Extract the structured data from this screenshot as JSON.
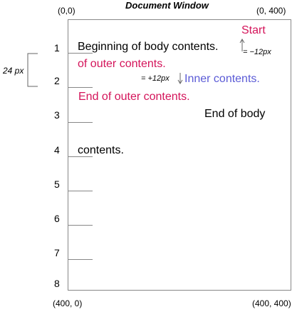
{
  "title": "Document Window",
  "corners": {
    "top_left": "(0,0)",
    "top_right": "(0, 400)",
    "bottom_left": "(400, 0)",
    "bottom_right": "(400, 400)"
  },
  "line_numbers": [
    "1",
    "2",
    "3",
    "4",
    "5",
    "6",
    "7",
    "8"
  ],
  "line_height_label": "24 px",
  "texts": {
    "start": "Start",
    "offset_minus": "= −12px",
    "offset_plus": "= +12px",
    "body_begin": "Beginning of body contents.",
    "outer_contents": "of outer contents.",
    "inner_contents": "Inner contents.",
    "outer_end": "End of outer contents.",
    "body_end": "End of body",
    "body_contents": "contents."
  },
  "colors": {
    "red": "#d4145a",
    "blue": "#5b5bd6"
  }
}
